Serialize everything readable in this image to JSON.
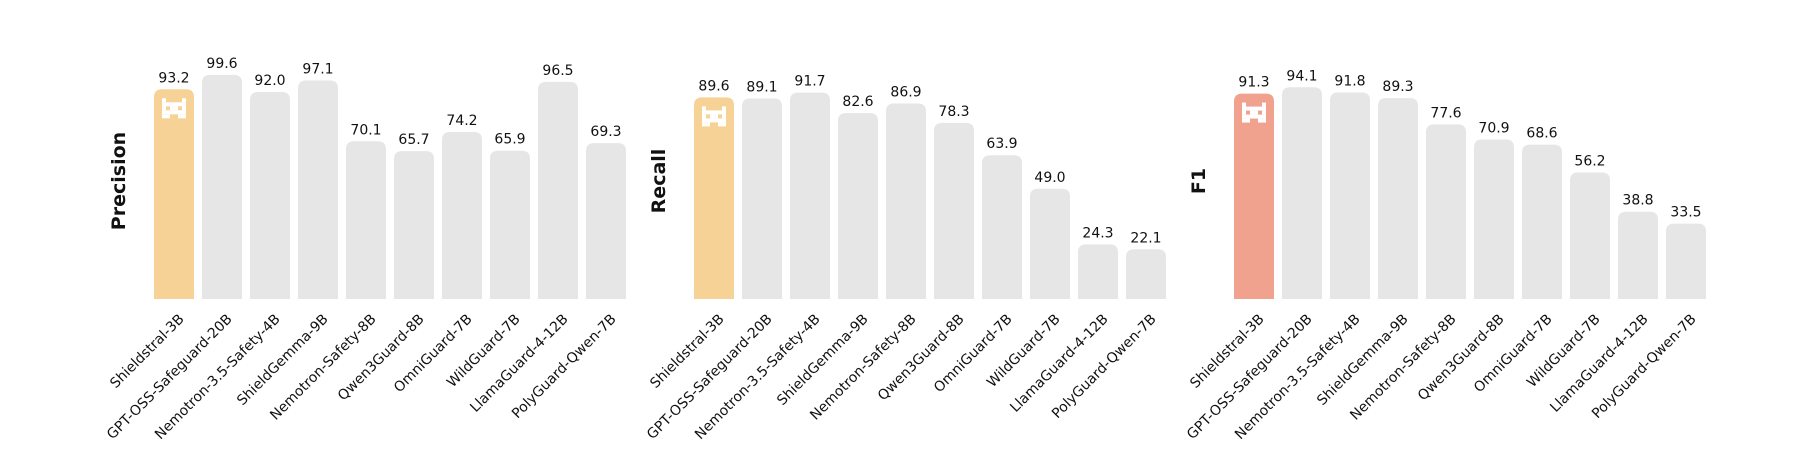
{
  "chart_data": [
    {
      "type": "bar",
      "ylabel": "Precision",
      "categories": [
        "Shieldstral-3B",
        "GPT-OSS-Safeguard-20B",
        "Nemotron-3.5-Safety-4B",
        "ShieldGemma-9B",
        "Nemotron-Safety-8B",
        "Qwen3Guard-8B",
        "OmniGuard-7B",
        "WildGuard-7B",
        "LlamaGuard-4-12B",
        "PolyGuard-Qwen-7B"
      ],
      "values": [
        93.2,
        99.6,
        92.0,
        97.1,
        70.1,
        65.7,
        74.2,
        65.9,
        96.5,
        69.3
      ],
      "labels": [
        "93.2",
        "99.6",
        "92.0",
        "97.1",
        "70.1",
        "65.7",
        "74.2",
        "65.9",
        "96.5",
        "69.3"
      ],
      "ylim": [
        0,
        100
      ],
      "highlight_index": 0,
      "highlight_color": "#f6d296",
      "bar_color": "#e6e6e6"
    },
    {
      "type": "bar",
      "ylabel": "Recall",
      "categories": [
        "Shieldstral-3B",
        "GPT-OSS-Safeguard-20B",
        "Nemotron-3.5-Safety-4B",
        "ShieldGemma-9B",
        "Nemotron-Safety-8B",
        "Qwen3Guard-8B",
        "OmniGuard-7B",
        "WildGuard-7B",
        "LlamaGuard-4-12B",
        "PolyGuard-Qwen-7B"
      ],
      "values": [
        89.6,
        89.1,
        91.7,
        82.6,
        86.9,
        78.3,
        63.9,
        49.0,
        24.3,
        22.1
      ],
      "labels": [
        "89.6",
        "89.1",
        "91.7",
        "82.6",
        "86.9",
        "78.3",
        "63.9",
        "49.0",
        "24.3",
        "22.1"
      ],
      "ylim": [
        0,
        100
      ],
      "highlight_index": 0,
      "highlight_color": "#f6d296",
      "bar_color": "#e6e6e6"
    },
    {
      "type": "bar",
      "ylabel": "F1",
      "categories": [
        "Shieldstral-3B",
        "GPT-OSS-Safeguard-20B",
        "Nemotron-3.5-Safety-4B",
        "ShieldGemma-9B",
        "Nemotron-Safety-8B",
        "Qwen3Guard-8B",
        "OmniGuard-7B",
        "WildGuard-7B",
        "LlamaGuard-4-12B",
        "PolyGuard-Qwen-7B"
      ],
      "values": [
        91.3,
        94.1,
        91.8,
        89.3,
        77.6,
        70.9,
        68.6,
        56.2,
        38.8,
        33.5
      ],
      "labels": [
        "91.3",
        "94.1",
        "91.8",
        "89.3",
        "77.6",
        "70.9",
        "68.6",
        "56.2",
        "38.8",
        "33.5"
      ],
      "ylim": [
        0,
        100
      ],
      "highlight_index": 0,
      "highlight_color": "#f0a28f",
      "bar_color": "#e6e6e6"
    }
  ],
  "highlight_icon": "pixel-cat-logo-icon"
}
